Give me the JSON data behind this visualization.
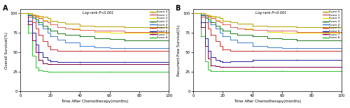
{
  "title_A": "A",
  "title_B": "B",
  "logrank_text": "Log-rank P<0.001",
  "xlabel": "Time After Chemotherapy(months)",
  "ylabel_A": "Overall Survival(%)",
  "ylabel_B": "Recurrent-Free Survival(%)",
  "xlim": [
    0,
    100
  ],
  "ylim": [
    0,
    105
  ],
  "yticks": [
    0,
    25,
    50,
    75,
    100
  ],
  "xticks": [
    0,
    20,
    40,
    60,
    80,
    100
  ],
  "score_colors": [
    "#b8a000",
    "#e06060",
    "#e8d800",
    "#1a7a1a",
    "#4080d0",
    "#c83030",
    "#2020a0",
    "#800040",
    "#30c030"
  ],
  "score_labels": [
    "Score 0",
    "Score 1",
    "Score 2",
    "Score 3",
    "Score 4",
    "Score 5",
    "Score 6",
    "Score 7",
    "Score 8"
  ],
  "curves_A": [
    {
      "x": [
        0,
        5,
        8,
        10,
        12,
        15,
        18,
        20,
        25,
        30,
        40,
        50,
        60,
        70,
        80,
        100
      ],
      "y": [
        100,
        100,
        98,
        97,
        96,
        95,
        93,
        90,
        88,
        86,
        84,
        83,
        83,
        82,
        82,
        82
      ]
    },
    {
      "x": [
        0,
        5,
        8,
        10,
        12,
        15,
        18,
        20,
        25,
        30,
        35,
        40,
        50,
        60,
        70,
        80,
        100
      ],
      "y": [
        100,
        100,
        97,
        95,
        93,
        90,
        88,
        85,
        82,
        80,
        79,
        78,
        77,
        77,
        76,
        76,
        76
      ]
    },
    {
      "x": [
        0,
        5,
        8,
        10,
        12,
        15,
        18,
        20,
        25,
        30,
        40,
        50,
        60,
        70,
        80,
        100
      ],
      "y": [
        100,
        100,
        98,
        96,
        94,
        91,
        88,
        85,
        82,
        80,
        78,
        76,
        75,
        75,
        75,
        75
      ]
    },
    {
      "x": [
        0,
        5,
        8,
        10,
        12,
        15,
        18,
        20,
        25,
        30,
        40,
        50,
        60,
        70,
        80,
        100
      ],
      "y": [
        100,
        98,
        95,
        92,
        88,
        84,
        80,
        77,
        74,
        72,
        70,
        68,
        67,
        65,
        65,
        65
      ]
    },
    {
      "x": [
        0,
        5,
        8,
        10,
        12,
        15,
        18,
        20,
        25,
        30,
        40,
        50,
        60,
        70,
        100
      ],
      "y": [
        100,
        97,
        93,
        89,
        85,
        80,
        75,
        70,
        66,
        62,
        58,
        56,
        55,
        55,
        55
      ]
    },
    {
      "x": [
        0,
        5,
        8,
        10,
        12,
        15,
        18,
        20,
        25,
        30,
        40,
        50,
        60,
        70,
        100
      ],
      "y": [
        100,
        95,
        88,
        80,
        72,
        64,
        58,
        53,
        52,
        52,
        52,
        52,
        52,
        52,
        52
      ]
    },
    {
      "x": [
        0,
        5,
        8,
        10,
        12,
        15,
        18,
        20,
        25,
        30,
        40,
        50,
        60,
        70,
        100
      ],
      "y": [
        100,
        90,
        75,
        60,
        50,
        44,
        40,
        38,
        37,
        37,
        37,
        37,
        37,
        37,
        37
      ]
    },
    {
      "x": [
        0,
        5,
        8,
        10,
        12,
        15,
        18,
        20,
        25,
        30,
        40,
        50,
        100
      ],
      "y": [
        100,
        85,
        65,
        50,
        40,
        36,
        35,
        35,
        35,
        35,
        35,
        35,
        35
      ]
    },
    {
      "x": [
        0,
        5,
        8,
        10,
        12,
        15,
        18,
        20,
        25,
        30,
        60,
        70,
        100
      ],
      "y": [
        100,
        75,
        45,
        30,
        27,
        26,
        25,
        25,
        25,
        25,
        25,
        25,
        25
      ]
    }
  ],
  "curves_B": [
    {
      "x": [
        0,
        5,
        8,
        10,
        12,
        15,
        18,
        20,
        25,
        30,
        40,
        50,
        60,
        70,
        80,
        100
      ],
      "y": [
        100,
        100,
        98,
        97,
        96,
        95,
        93,
        90,
        88,
        86,
        84,
        83,
        83,
        82,
        82,
        82
      ]
    },
    {
      "x": [
        0,
        5,
        8,
        10,
        12,
        15,
        18,
        20,
        25,
        30,
        35,
        40,
        50,
        60,
        70,
        80,
        100
      ],
      "y": [
        100,
        100,
        97,
        95,
        93,
        90,
        88,
        85,
        82,
        80,
        79,
        78,
        77,
        77,
        76,
        76,
        76
      ]
    },
    {
      "x": [
        0,
        5,
        8,
        10,
        12,
        15,
        18,
        20,
        25,
        30,
        40,
        50,
        60,
        70,
        80,
        100
      ],
      "y": [
        100,
        100,
        98,
        96,
        94,
        91,
        88,
        85,
        82,
        80,
        78,
        76,
        75,
        75,
        75,
        75
      ]
    },
    {
      "x": [
        0,
        5,
        8,
        10,
        12,
        15,
        18,
        20,
        25,
        30,
        40,
        50,
        60,
        70,
        80,
        100
      ],
      "y": [
        100,
        98,
        95,
        92,
        88,
        84,
        80,
        77,
        74,
        72,
        70,
        68,
        67,
        65,
        65,
        65
      ]
    },
    {
      "x": [
        0,
        5,
        8,
        10,
        12,
        15,
        18,
        20,
        25,
        30,
        40,
        50,
        60,
        70,
        100
      ],
      "y": [
        100,
        97,
        93,
        89,
        85,
        80,
        75,
        70,
        66,
        62,
        58,
        56,
        55,
        55,
        55
      ]
    },
    {
      "x": [
        0,
        5,
        8,
        10,
        12,
        15,
        18,
        20,
        25,
        30,
        40,
        50,
        60,
        70,
        100
      ],
      "y": [
        100,
        95,
        88,
        80,
        72,
        64,
        58,
        53,
        52,
        52,
        52,
        52,
        52,
        52,
        52
      ]
    },
    {
      "x": [
        0,
        5,
        8,
        10,
        12,
        15,
        18,
        20,
        25,
        30,
        40,
        50,
        60,
        70,
        100
      ],
      "y": [
        100,
        88,
        68,
        52,
        44,
        40,
        38,
        37,
        38,
        38,
        40,
        40,
        40,
        40,
        40
      ]
    },
    {
      "x": [
        0,
        5,
        8,
        10,
        12,
        15,
        18,
        20,
        25,
        30,
        40,
        50,
        100
      ],
      "y": [
        100,
        82,
        58,
        42,
        33,
        32,
        31,
        31,
        31,
        31,
        31,
        31,
        31
      ]
    },
    {
      "x": [
        0,
        5,
        8,
        10,
        12,
        15,
        18,
        20,
        25,
        30,
        60,
        65,
        70,
        100
      ],
      "y": [
        100,
        70,
        38,
        28,
        26,
        26,
        26,
        26,
        26,
        26,
        26,
        26,
        26,
        26
      ]
    }
  ]
}
